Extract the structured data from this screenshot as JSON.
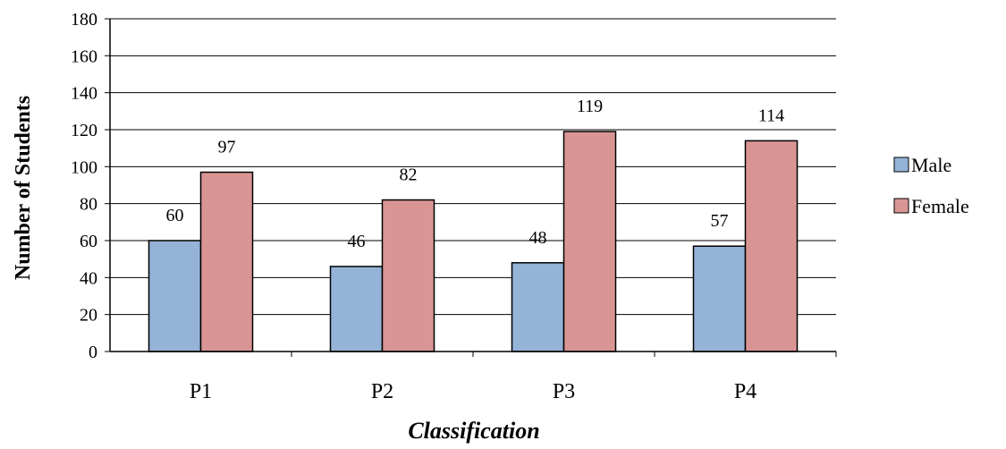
{
  "chart_data": {
    "type": "bar",
    "categories": [
      "P1",
      "P2",
      "P3",
      "P4"
    ],
    "series": [
      {
        "name": "Male",
        "values": [
          60,
          46,
          48,
          57
        ],
        "color": "#95b3d7"
      },
      {
        "name": "Female",
        "values": [
          97,
          82,
          119,
          114
        ],
        "color": "#d99594"
      }
    ],
    "xlabel": "Classification",
    "ylabel": "Number of Students",
    "ylim": [
      0,
      180
    ],
    "yticks": [
      0,
      20,
      40,
      60,
      80,
      100,
      120,
      140,
      160,
      180
    ],
    "grid": true,
    "legend_position": "right"
  }
}
